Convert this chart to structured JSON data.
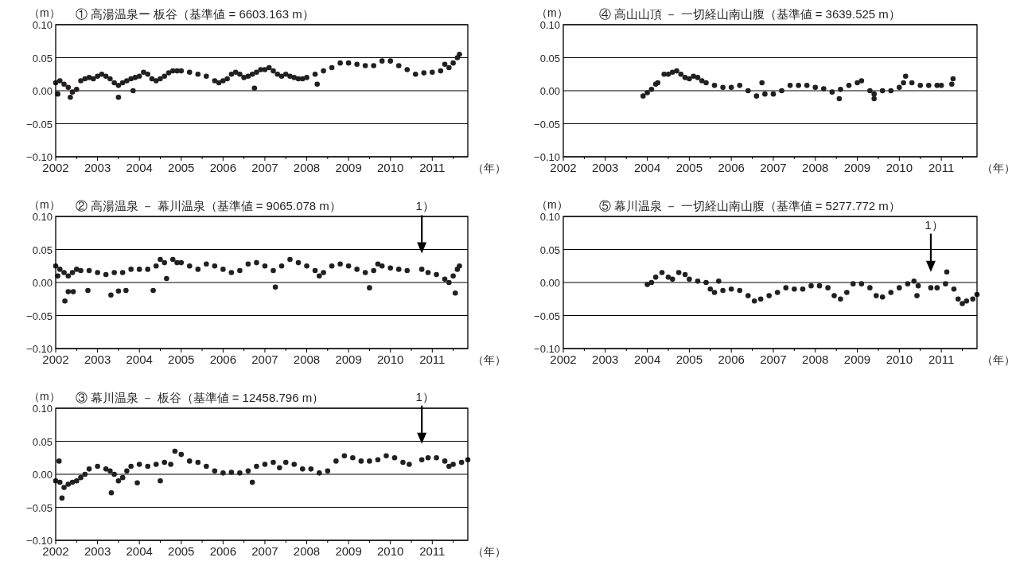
{
  "chart_data": [
    {
      "type": "scatter",
      "title": "① 高湯温泉ー 板谷（基準値 = 6603.163 m）",
      "ylabel": "（m）",
      "xlabel": "（年）",
      "xlim": [
        2002,
        2011.85
      ],
      "ylim": [
        -0.1,
        0.1
      ],
      "xticks": [
        2002,
        {
          "value": 2002.5,
          "label": null
        },
        2003,
        {
          "value": 2003.5,
          "label": null
        },
        2004,
        {
          "value": 2004.5,
          "label": null
        },
        2005,
        {
          "value": 2005.5,
          "label": null
        },
        2006,
        {
          "value": 2006.5,
          "label": null
        },
        2007,
        {
          "value": 2007.5,
          "label": null
        },
        2008,
        {
          "value": 2008.5,
          "label": null
        },
        2009,
        {
          "value": 2009.5,
          "label": null
        },
        2010,
        {
          "value": 2010.5,
          "label": null
        },
        2011,
        {
          "value": 2011.5,
          "label": null
        }
      ],
      "yticks": [
        {
          "value": 0.1,
          "label": "0.10"
        },
        {
          "value": 0.05,
          "label": "0.05"
        },
        {
          "value": 0,
          "label": "0.00"
        },
        {
          "value": -0.05,
          "label": "−0.05"
        },
        {
          "value": -0.1,
          "label": "−0.10"
        }
      ],
      "grid": "y",
      "marker": "circle",
      "series": [
        {
          "color": "#231f20",
          "x": [
            2002.0,
            2002.1,
            2002.2,
            2002.3,
            2002.4,
            2002.5,
            2002.6,
            2002.7,
            2002.8,
            2002.9,
            2003.0,
            2003.1,
            2003.2,
            2003.3,
            2003.4,
            2003.5,
            2003.6,
            2003.7,
            2003.8,
            2003.9,
            2004.0,
            2004.1,
            2004.2,
            2004.3,
            2004.4,
            2004.5,
            2004.6,
            2004.7,
            2004.8,
            2004.9,
            2005.0,
            2005.2,
            2005.4,
            2005.6,
            2005.8,
            2005.9,
            2006.0,
            2006.1,
            2006.2,
            2006.3,
            2006.4,
            2006.5,
            2006.6,
            2006.7,
            2006.8,
            2006.9,
            2007.0,
            2007.1,
            2007.2,
            2007.3,
            2007.4,
            2007.5,
            2007.6,
            2007.7,
            2007.8,
            2007.9,
            2008.0,
            2008.2,
            2008.4,
            2008.6,
            2008.8,
            2009.0,
            2009.2,
            2009.4,
            2009.6,
            2009.8,
            2010.0,
            2010.2,
            2010.4,
            2010.6,
            2010.8,
            2011.0,
            2011.2,
            2011.3,
            2011.4,
            2011.5,
            2011.6,
            2011.65,
            2002.05,
            2003.5,
            2003.85,
            2006.75,
            2008.25,
            2002.35
          ],
          "values": [
            0.012,
            0.015,
            0.01,
            0.005,
            -0.002,
            0.002,
            0.015,
            0.018,
            0.02,
            0.018,
            0.022,
            0.025,
            0.022,
            0.018,
            0.012,
            0.008,
            0.012,
            0.015,
            0.018,
            0.02,
            0.022,
            0.028,
            0.025,
            0.018,
            0.015,
            0.018,
            0.022,
            0.027,
            0.03,
            0.03,
            0.03,
            0.028,
            0.025,
            0.022,
            0.015,
            0.012,
            0.015,
            0.018,
            0.025,
            0.028,
            0.025,
            0.02,
            0.022,
            0.025,
            0.028,
            0.032,
            0.032,
            0.035,
            0.03,
            0.025,
            0.022,
            0.025,
            0.022,
            0.02,
            0.018,
            0.018,
            0.02,
            0.025,
            0.03,
            0.035,
            0.042,
            0.042,
            0.04,
            0.038,
            0.038,
            0.045,
            0.045,
            0.038,
            0.032,
            0.025,
            0.027,
            0.028,
            0.03,
            0.04,
            0.035,
            0.042,
            0.05,
            0.055,
            -0.005,
            -0.01,
            0.0,
            0.004,
            0.01,
            -0.01
          ]
        }
      ]
    },
    {
      "type": "scatter",
      "title": "② 高湯温泉 － 幕川温泉（基準値 = 9065.078 m）",
      "ylabel": "（m）",
      "xlabel": "（年）",
      "xlim": [
        2002,
        2011.85
      ],
      "ylim": [
        -0.1,
        0.1
      ],
      "xticks": [
        2002,
        {
          "value": 2002.5,
          "label": null
        },
        2003,
        {
          "value": 2003.5,
          "label": null
        },
        2004,
        {
          "value": 2004.5,
          "label": null
        },
        2005,
        {
          "value": 2005.5,
          "label": null
        },
        2006,
        {
          "value": 2006.5,
          "label": null
        },
        2007,
        {
          "value": 2007.5,
          "label": null
        },
        2008,
        {
          "value": 2008.5,
          "label": null
        },
        2009,
        {
          "value": 2009.5,
          "label": null
        },
        2010,
        {
          "value": 2010.5,
          "label": null
        },
        2011,
        {
          "value": 2011.5,
          "label": null
        }
      ],
      "yticks": [
        {
          "value": 0.1,
          "label": "0.10"
        },
        {
          "value": 0.05,
          "label": "0.05"
        },
        {
          "value": 0,
          "label": "0.00"
        },
        {
          "value": -0.05,
          "label": "−0.05"
        },
        {
          "value": -0.1,
          "label": "−0.10"
        }
      ],
      "grid": "y",
      "marker": "circle",
      "annotations": [
        "1）"
      ],
      "series": [
        {
          "color": "#231f20",
          "x": [
            2002.0,
            2002.05,
            2002.1,
            2002.2,
            2002.3,
            2002.4,
            2002.5,
            2002.6,
            2002.8,
            2003.0,
            2003.2,
            2003.4,
            2003.6,
            2003.8,
            2004.0,
            2004.2,
            2004.4,
            2004.5,
            2004.6,
            2004.8,
            2004.9,
            2005.0,
            2005.2,
            2005.4,
            2005.6,
            2005.8,
            2006.0,
            2006.2,
            2006.4,
            2006.6,
            2006.8,
            2007.0,
            2007.2,
            2007.4,
            2007.6,
            2007.8,
            2008.0,
            2008.2,
            2008.3,
            2008.4,
            2008.6,
            2008.8,
            2009.0,
            2009.2,
            2009.4,
            2009.6,
            2009.7,
            2009.8,
            2010.0,
            2010.2,
            2010.4,
            2010.75,
            2010.9,
            2011.1,
            2011.3,
            2011.4,
            2011.5,
            2011.6,
            2011.65,
            2002.22,
            2002.3,
            2002.42,
            2002.77,
            2003.32,
            2003.5,
            2003.68,
            2004.33,
            2004.65,
            2007.25,
            2009.5,
            2011.55
          ],
          "values": [
            0.025,
            0.01,
            0.02,
            0.015,
            0.01,
            0.015,
            0.02,
            0.018,
            0.018,
            0.015,
            0.012,
            0.015,
            0.015,
            0.02,
            0.02,
            0.02,
            0.025,
            0.035,
            0.03,
            0.035,
            0.03,
            0.03,
            0.025,
            0.02,
            0.028,
            0.025,
            0.02,
            0.015,
            0.018,
            0.028,
            0.03,
            0.025,
            0.018,
            0.025,
            0.035,
            0.03,
            0.025,
            0.018,
            0.01,
            0.015,
            0.025,
            0.028,
            0.025,
            0.02,
            0.015,
            0.018,
            0.028,
            0.025,
            0.022,
            0.02,
            0.018,
            0.02,
            0.015,
            0.012,
            0.005,
            0.0,
            0.01,
            0.02,
            0.025,
            -0.028,
            -0.014,
            -0.014,
            -0.012,
            -0.019,
            -0.013,
            -0.012,
            -0.012,
            0.006,
            -0.007,
            -0.008,
            -0.016
          ]
        }
      ]
    },
    {
      "type": "scatter",
      "title": "③ 幕川温泉 － 板谷（基準値 = 12458.796 m）",
      "ylabel": "（m）",
      "xlabel": "（年）",
      "xlim": [
        2002,
        2011.85
      ],
      "ylim": [
        -0.1,
        0.1
      ],
      "xticks": [
        2002,
        {
          "value": 2002.5,
          "label": null
        },
        2003,
        {
          "value": 2003.5,
          "label": null
        },
        2004,
        {
          "value": 2004.5,
          "label": null
        },
        2005,
        {
          "value": 2005.5,
          "label": null
        },
        2006,
        {
          "value": 2006.5,
          "label": null
        },
        2007,
        {
          "value": 2007.5,
          "label": null
        },
        2008,
        {
          "value": 2008.5,
          "label": null
        },
        2009,
        {
          "value": 2009.5,
          "label": null
        },
        2010,
        {
          "value": 2010.5,
          "label": null
        },
        2011,
        {
          "value": 2011.5,
          "label": null
        }
      ],
      "yticks": [
        {
          "value": 0.1,
          "label": "0.10"
        },
        {
          "value": 0.05,
          "label": "0.05"
        },
        {
          "value": 0,
          "label": "0.00"
        },
        {
          "value": -0.05,
          "label": "−0.05"
        },
        {
          "value": -0.1,
          "label": "−0.10"
        }
      ],
      "grid": "y",
      "marker": "circle",
      "annotations": [
        "1）"
      ],
      "series": [
        {
          "color": "#231f20",
          "x": [
            2002.0,
            2002.1,
            2002.2,
            2002.3,
            2002.4,
            2002.5,
            2002.6,
            2002.7,
            2002.8,
            2003.0,
            2003.2,
            2003.3,
            2003.4,
            2003.5,
            2003.6,
            2003.7,
            2003.8,
            2004.0,
            2004.2,
            2004.4,
            2004.6,
            2004.75,
            2004.85,
            2005.0,
            2005.2,
            2005.4,
            2005.6,
            2005.8,
            2006.0,
            2006.2,
            2006.4,
            2006.6,
            2006.8,
            2007.0,
            2007.2,
            2007.35,
            2007.5,
            2007.7,
            2007.9,
            2008.1,
            2008.3,
            2008.5,
            2008.7,
            2008.9,
            2009.1,
            2009.3,
            2009.5,
            2009.7,
            2009.9,
            2010.1,
            2010.3,
            2010.45,
            2010.75,
            2010.9,
            2011.1,
            2011.3,
            2011.4,
            2011.5,
            2011.7,
            2011.85,
            2002.08,
            2002.15,
            2003.33,
            2003.95,
            2006.7,
            2004.5
          ],
          "values": [
            -0.01,
            -0.012,
            -0.02,
            -0.015,
            -0.012,
            -0.01,
            -0.005,
            0.0,
            0.008,
            0.012,
            0.008,
            0.005,
            0.0,
            -0.01,
            -0.005,
            0.005,
            0.012,
            0.015,
            0.012,
            0.015,
            0.018,
            0.015,
            0.035,
            0.03,
            0.02,
            0.018,
            0.012,
            0.005,
            0.002,
            0.003,
            0.002,
            0.005,
            0.012,
            0.015,
            0.018,
            0.01,
            0.018,
            0.015,
            0.008,
            0.008,
            0.002,
            0.005,
            0.02,
            0.028,
            0.025,
            0.02,
            0.02,
            0.022,
            0.028,
            0.025,
            0.018,
            0.015,
            0.022,
            0.025,
            0.025,
            0.02,
            0.012,
            0.015,
            0.018,
            0.022,
            0.02,
            -0.036,
            -0.028,
            -0.013,
            -0.012,
            -0.01
          ]
        }
      ]
    },
    {
      "type": "scatter",
      "title": "④ 高山山頂 － 一切経山南山腹（基準値 = 3639.525 m）",
      "ylabel": "（m）",
      "xlabel": "（年）",
      "xlim": [
        2002,
        2011.85
      ],
      "ylim": [
        -0.1,
        0.1
      ],
      "xticks": [
        2002,
        {
          "value": 2002.5,
          "label": null
        },
        2003,
        {
          "value": 2003.5,
          "label": null
        },
        2004,
        {
          "value": 2004.5,
          "label": null
        },
        2005,
        {
          "value": 2005.5,
          "label": null
        },
        2006,
        {
          "value": 2006.5,
          "label": null
        },
        2007,
        {
          "value": 2007.5,
          "label": null
        },
        2008,
        {
          "value": 2008.5,
          "label": null
        },
        2009,
        {
          "value": 2009.5,
          "label": null
        },
        2010,
        {
          "value": 2010.5,
          "label": null
        },
        2011,
        {
          "value": 2011.5,
          "label": null
        }
      ],
      "yticks": [
        {
          "value": 0.1,
          "label": "0.10"
        },
        {
          "value": 0.05,
          "label": "0.05"
        },
        {
          "value": 0,
          "label": "0.00"
        },
        {
          "value": -0.05,
          "label": "−0.05"
        },
        {
          "value": -0.1,
          "label": "−0.10"
        }
      ],
      "grid": "y",
      "marker": "circle",
      "series": [
        {
          "color": "#231f20",
          "x": [
            2003.9,
            2004.0,
            2004.1,
            2004.2,
            2004.25,
            2004.4,
            2004.5,
            2004.6,
            2004.7,
            2004.8,
            2004.9,
            2005.0,
            2005.1,
            2005.2,
            2005.3,
            2005.4,
            2005.6,
            2005.8,
            2006.0,
            2006.2,
            2006.4,
            2006.6,
            2006.8,
            2007.0,
            2007.2,
            2007.4,
            2007.6,
            2007.8,
            2008.0,
            2008.2,
            2008.4,
            2008.6,
            2008.8,
            2009.0,
            2009.1,
            2009.3,
            2009.4,
            2009.6,
            2009.8,
            2010.0,
            2010.1,
            2010.15,
            2010.3,
            2010.5,
            2010.7,
            2010.9,
            2011.0,
            2011.25,
            2011.28,
            2006.73,
            2008.57,
            2009.4
          ],
          "values": [
            -0.008,
            -0.003,
            0.002,
            0.01,
            0.012,
            0.025,
            0.025,
            0.028,
            0.03,
            0.025,
            0.02,
            0.018,
            0.022,
            0.02,
            0.015,
            0.012,
            0.008,
            0.005,
            0.005,
            0.008,
            0.0,
            -0.008,
            -0.005,
            -0.005,
            0.0,
            0.008,
            0.008,
            0.008,
            0.005,
            0.003,
            -0.002,
            0.002,
            0.008,
            0.012,
            0.015,
            0.0,
            -0.005,
            0.0,
            0.0,
            0.005,
            0.012,
            0.022,
            0.012,
            0.008,
            0.008,
            0.008,
            0.008,
            0.01,
            0.018,
            0.012,
            -0.012,
            -0.012
          ]
        }
      ]
    },
    {
      "type": "scatter",
      "title": "⑤ 幕川温泉 － 一切経山南山腹（基準値 = 5277.772 m）",
      "ylabel": "（m）",
      "xlabel": "（年）",
      "xlim": [
        2002,
        2011.85
      ],
      "ylim": [
        -0.1,
        0.1
      ],
      "xticks": [
        2002,
        {
          "value": 2002.5,
          "label": null
        },
        2003,
        {
          "value": 2003.5,
          "label": null
        },
        2004,
        {
          "value": 2004.5,
          "label": null
        },
        2005,
        {
          "value": 2005.5,
          "label": null
        },
        2006,
        {
          "value": 2006.5,
          "label": null
        },
        2007,
        {
          "value": 2007.5,
          "label": null
        },
        2008,
        {
          "value": 2008.5,
          "label": null
        },
        2009,
        {
          "value": 2009.5,
          "label": null
        },
        2010,
        {
          "value": 2010.5,
          "label": null
        },
        2011,
        {
          "value": 2011.5,
          "label": null
        }
      ],
      "yticks": [
        {
          "value": 0.1,
          "label": "0.10"
        },
        {
          "value": 0.05,
          "label": "0.05"
        },
        {
          "value": 0,
          "label": "0.00"
        },
        {
          "value": -0.05,
          "label": "−0.05"
        },
        {
          "value": -0.1,
          "label": "−0.10"
        }
      ],
      "grid": "y",
      "marker": "circle",
      "annotations": [
        "1）"
      ],
      "series": [
        {
          "color": "#231f20",
          "x": [
            2004.0,
            2004.1,
            2004.2,
            2004.35,
            2004.5,
            2004.6,
            2004.75,
            2004.9,
            2005.0,
            2005.2,
            2005.4,
            2005.5,
            2005.6,
            2005.8,
            2006.0,
            2006.2,
            2006.4,
            2006.55,
            2006.7,
            2006.9,
            2007.1,
            2007.3,
            2007.5,
            2007.7,
            2007.9,
            2008.1,
            2008.3,
            2008.45,
            2008.6,
            2008.75,
            2008.9,
            2009.1,
            2009.3,
            2009.45,
            2009.6,
            2009.8,
            2010.0,
            2010.2,
            2010.35,
            2010.45,
            2010.75,
            2010.9,
            2011.1,
            2011.3,
            2011.4,
            2011.5,
            2011.6,
            2011.75,
            2011.85,
            2005.7,
            2010.42,
            2011.13
          ],
          "values": [
            -0.003,
            0.0,
            0.008,
            0.015,
            0.008,
            0.005,
            0.015,
            0.012,
            0.005,
            0.002,
            0.0,
            -0.01,
            -0.015,
            -0.012,
            -0.01,
            -0.012,
            -0.02,
            -0.028,
            -0.025,
            -0.02,
            -0.015,
            -0.008,
            -0.01,
            -0.01,
            -0.005,
            -0.005,
            -0.008,
            -0.02,
            -0.025,
            -0.015,
            -0.002,
            -0.002,
            -0.008,
            -0.02,
            -0.022,
            -0.015,
            -0.008,
            -0.002,
            0.002,
            -0.005,
            -0.008,
            -0.008,
            -0.002,
            -0.01,
            -0.025,
            -0.032,
            -0.028,
            -0.025,
            -0.018,
            0.002,
            -0.02,
            0.016
          ]
        }
      ]
    }
  ]
}
